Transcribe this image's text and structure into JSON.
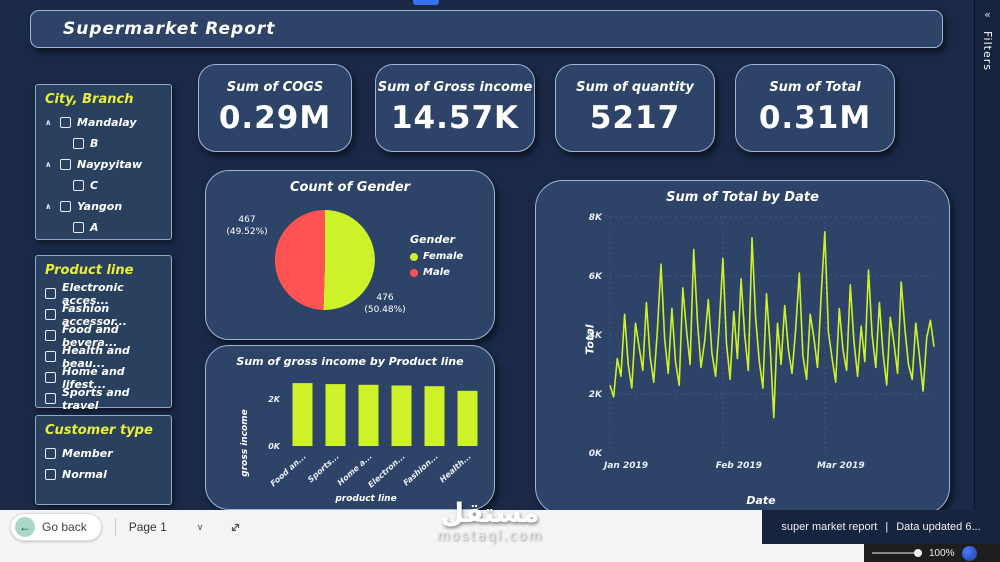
{
  "header": {
    "title": "Supermarket Report"
  },
  "filters_panel": {
    "label": "Filters"
  },
  "sidebar": {
    "city_branch": {
      "title": "City, Branch",
      "items": [
        {
          "label": "Mandalay",
          "child": "B"
        },
        {
          "label": "Naypyitaw",
          "child": "C"
        },
        {
          "label": "Yangon",
          "child": "A"
        }
      ]
    },
    "product_line": {
      "title": "Product line",
      "items": [
        {
          "label": "Electronic acces..."
        },
        {
          "label": "Fashion accessor..."
        },
        {
          "label": "Food and bevera..."
        },
        {
          "label": "Health and beau..."
        },
        {
          "label": "Home and lifest..."
        },
        {
          "label": "Sports and travel"
        }
      ]
    },
    "customer_type": {
      "title": "Customer type",
      "items": [
        {
          "label": "Member"
        },
        {
          "label": "Normal"
        }
      ]
    }
  },
  "kpis": [
    {
      "title": "Sum of COGS",
      "value": "0.29M"
    },
    {
      "title": "Sum of Gross income",
      "value": "14.57K"
    },
    {
      "title": "Sum of quantity",
      "value": "5217"
    },
    {
      "title": "Sum of Total",
      "value": "0.31M"
    }
  ],
  "chart_data": [
    {
      "type": "pie",
      "title": "Count of Gender",
      "legend_title": "Gender",
      "legend_position": "right",
      "slices": [
        {
          "name": "Female",
          "count": 476,
          "pct": 50.48,
          "label_value": "476",
          "label_pct": "(50.48%)",
          "color": "#cdf229"
        },
        {
          "name": "Male",
          "count": 467,
          "pct": 49.52,
          "label_value": "467",
          "label_pct": "(49.52%)",
          "color": "#ff5252"
        }
      ]
    },
    {
      "type": "bar",
      "title": "Sum of gross income by Product line",
      "xlabel": "product line",
      "ylabel": "gross income",
      "categories": [
        "Food an...",
        "Sports...",
        "Home a...",
        "Electron...",
        "Fashion...",
        "Health..."
      ],
      "values": [
        2670,
        2625,
        2595,
        2565,
        2535,
        2340
      ],
      "ylim": [
        0,
        2800
      ],
      "yticks": [
        {
          "v": 0,
          "label": "0K"
        },
        {
          "v": 2000,
          "label": "2K"
        }
      ],
      "color": "#cdf229",
      "grid": false
    },
    {
      "type": "line",
      "title": "Sum of Total by Date",
      "xlabel": "Date",
      "ylabel": "Total",
      "ylim_k": [
        0,
        8
      ],
      "yticks": [
        "0K",
        "2K",
        "4K",
        "6K",
        "8K"
      ],
      "x_ticks": [
        {
          "day": 0,
          "label": "Jan 2019"
        },
        {
          "day": 31,
          "label": "Feb 2019"
        },
        {
          "day": 59,
          "label": "Mar 2019"
        }
      ],
      "values_k": [
        2.3,
        1.9,
        3.2,
        2.6,
        4.7,
        3.0,
        2.2,
        4.4,
        3.6,
        2.8,
        5.1,
        3.3,
        2.4,
        4.1,
        6.4,
        3.9,
        2.7,
        4.9,
        3.1,
        2.3,
        5.6,
        4.2,
        3.0,
        6.9,
        4.5,
        2.9,
        3.8,
        5.2,
        3.4,
        2.6,
        4.3,
        6.6,
        3.7,
        2.5,
        4.8,
        3.2,
        5.9,
        4.0,
        2.8,
        7.3,
        4.6,
        3.1,
        2.2,
        5.4,
        3.6,
        1.2,
        4.4,
        3.0,
        5.0,
        3.5,
        2.7,
        4.2,
        6.1,
        3.3,
        2.5,
        4.7,
        3.9,
        2.9,
        5.3,
        7.5,
        4.1,
        3.2,
        2.4,
        4.9,
        3.5,
        2.8,
        5.7,
        3.8,
        2.6,
        4.3,
        3.1,
        6.2,
        4.0,
        2.9,
        5.1,
        3.4,
        2.3,
        4.6,
        3.7,
        2.7,
        5.8,
        4.2,
        3.0,
        2.5,
        4.4,
        3.3,
        2.1,
        3.9,
        4.5,
        3.6
      ],
      "color": "#cdf229",
      "grid": true
    }
  ],
  "statusbar": {
    "go_back": "Go back",
    "page": "Page 1",
    "report_name": "super market report",
    "separator": "|",
    "data_updated": "Data updated 6...",
    "zoom": "100%"
  },
  "watermark": {
    "title": "مستقل",
    "domain": "mostaql.com"
  }
}
